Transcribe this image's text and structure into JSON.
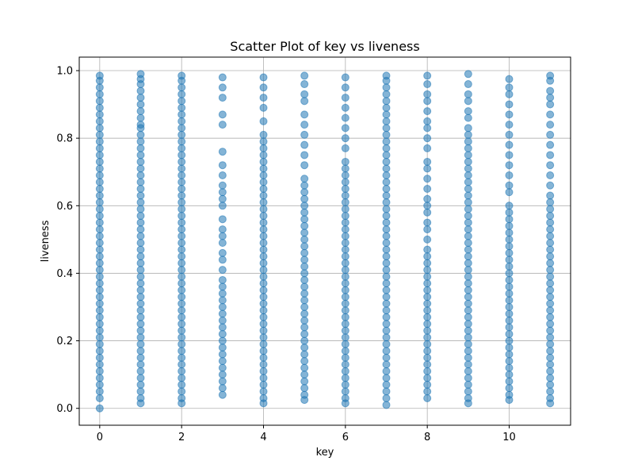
{
  "chart_data": {
    "type": "scatter",
    "title": "Scatter Plot of key vs liveness",
    "xlabel": "key",
    "ylabel": "liveness",
    "xlim": [
      -0.5,
      11.5
    ],
    "ylim": [
      -0.05,
      1.04
    ],
    "xticks": [
      0,
      2,
      4,
      6,
      8,
      10
    ],
    "xtick_labels": [
      "0",
      "2",
      "4",
      "6",
      "8",
      "10"
    ],
    "yticks": [
      0.0,
      0.2,
      0.4,
      0.6,
      0.8,
      1.0
    ],
    "ytick_labels": [
      "0.0",
      "0.2",
      "0.4",
      "0.6",
      "0.8",
      "1.0"
    ],
    "grid": true,
    "marker_color": "#1f77b4",
    "marker_alpha": 0.55,
    "series": [
      {
        "points_by_key": [
          {
            "x": 0,
            "y": [
              0.0,
              0.03,
              0.05,
              0.07,
              0.09,
              0.11,
              0.13,
              0.15,
              0.17,
              0.19,
              0.21,
              0.23,
              0.25,
              0.27,
              0.29,
              0.31,
              0.33,
              0.35,
              0.37,
              0.39,
              0.41,
              0.43,
              0.45,
              0.47,
              0.49,
              0.51,
              0.53,
              0.55,
              0.57,
              0.59,
              0.61,
              0.63,
              0.65,
              0.67,
              0.69,
              0.71,
              0.73,
              0.75,
              0.77,
              0.79,
              0.81,
              0.83,
              0.85,
              0.87,
              0.89,
              0.91,
              0.93,
              0.95,
              0.97,
              0.985
            ]
          },
          {
            "x": 1,
            "y": [
              0.015,
              0.03,
              0.05,
              0.07,
              0.09,
              0.11,
              0.13,
              0.15,
              0.17,
              0.19,
              0.21,
              0.23,
              0.25,
              0.27,
              0.29,
              0.31,
              0.33,
              0.35,
              0.37,
              0.39,
              0.41,
              0.43,
              0.45,
              0.47,
              0.49,
              0.51,
              0.53,
              0.55,
              0.57,
              0.59,
              0.61,
              0.63,
              0.65,
              0.67,
              0.69,
              0.71,
              0.73,
              0.75,
              0.77,
              0.79,
              0.81,
              0.83,
              0.84,
              0.86,
              0.88,
              0.9,
              0.92,
              0.94,
              0.96,
              0.975,
              0.99
            ]
          },
          {
            "x": 2,
            "y": [
              0.015,
              0.03,
              0.05,
              0.07,
              0.09,
              0.11,
              0.13,
              0.15,
              0.17,
              0.19,
              0.21,
              0.23,
              0.25,
              0.27,
              0.29,
              0.31,
              0.33,
              0.35,
              0.37,
              0.39,
              0.41,
              0.43,
              0.45,
              0.47,
              0.49,
              0.51,
              0.53,
              0.55,
              0.57,
              0.59,
              0.61,
              0.63,
              0.65,
              0.67,
              0.69,
              0.71,
              0.73,
              0.75,
              0.77,
              0.79,
              0.81,
              0.83,
              0.85,
              0.87,
              0.89,
              0.91,
              0.93,
              0.95,
              0.97,
              0.985
            ]
          },
          {
            "x": 3,
            "y": [
              0.04,
              0.06,
              0.08,
              0.1,
              0.12,
              0.14,
              0.16,
              0.18,
              0.2,
              0.22,
              0.24,
              0.26,
              0.28,
              0.3,
              0.32,
              0.34,
              0.36,
              0.38,
              0.41,
              0.44,
              0.46,
              0.49,
              0.51,
              0.53,
              0.56,
              0.6,
              0.62,
              0.64,
              0.66,
              0.69,
              0.72,
              0.76,
              0.84,
              0.87,
              0.92,
              0.95,
              0.98
            ]
          },
          {
            "x": 4,
            "y": [
              0.015,
              0.03,
              0.05,
              0.07,
              0.09,
              0.11,
              0.13,
              0.15,
              0.17,
              0.19,
              0.21,
              0.23,
              0.25,
              0.27,
              0.29,
              0.31,
              0.33,
              0.35,
              0.37,
              0.39,
              0.41,
              0.43,
              0.45,
              0.47,
              0.49,
              0.51,
              0.53,
              0.55,
              0.57,
              0.59,
              0.61,
              0.63,
              0.65,
              0.67,
              0.69,
              0.71,
              0.73,
              0.75,
              0.77,
              0.79,
              0.81,
              0.85,
              0.89,
              0.92,
              0.95,
              0.98
            ]
          },
          {
            "x": 5,
            "y": [
              0.025,
              0.04,
              0.06,
              0.08,
              0.1,
              0.12,
              0.14,
              0.16,
              0.18,
              0.2,
              0.22,
              0.24,
              0.26,
              0.28,
              0.3,
              0.32,
              0.34,
              0.36,
              0.38,
              0.4,
              0.42,
              0.44,
              0.46,
              0.48,
              0.5,
              0.52,
              0.54,
              0.56,
              0.58,
              0.6,
              0.62,
              0.64,
              0.66,
              0.68,
              0.72,
              0.75,
              0.78,
              0.81,
              0.84,
              0.87,
              0.91,
              0.93,
              0.96,
              0.985
            ]
          },
          {
            "x": 6,
            "y": [
              0.015,
              0.03,
              0.05,
              0.07,
              0.09,
              0.11,
              0.13,
              0.15,
              0.17,
              0.19,
              0.21,
              0.23,
              0.25,
              0.27,
              0.29,
              0.31,
              0.33,
              0.35,
              0.37,
              0.39,
              0.41,
              0.43,
              0.45,
              0.47,
              0.49,
              0.51,
              0.53,
              0.55,
              0.57,
              0.59,
              0.61,
              0.63,
              0.65,
              0.67,
              0.69,
              0.71,
              0.73,
              0.77,
              0.8,
              0.83,
              0.86,
              0.89,
              0.92,
              0.95,
              0.98
            ]
          },
          {
            "x": 7,
            "y": [
              0.01,
              0.03,
              0.05,
              0.07,
              0.09,
              0.11,
              0.13,
              0.15,
              0.17,
              0.19,
              0.21,
              0.23,
              0.25,
              0.27,
              0.29,
              0.31,
              0.33,
              0.35,
              0.37,
              0.39,
              0.41,
              0.43,
              0.45,
              0.47,
              0.49,
              0.51,
              0.53,
              0.55,
              0.57,
              0.59,
              0.61,
              0.63,
              0.65,
              0.67,
              0.69,
              0.71,
              0.73,
              0.75,
              0.77,
              0.79,
              0.81,
              0.83,
              0.85,
              0.87,
              0.89,
              0.91,
              0.93,
              0.95,
              0.97,
              0.985
            ]
          },
          {
            "x": 8,
            "y": [
              0.03,
              0.05,
              0.07,
              0.09,
              0.11,
              0.13,
              0.15,
              0.17,
              0.19,
              0.21,
              0.23,
              0.25,
              0.27,
              0.29,
              0.31,
              0.33,
              0.35,
              0.37,
              0.39,
              0.41,
              0.43,
              0.45,
              0.47,
              0.5,
              0.53,
              0.55,
              0.58,
              0.6,
              0.62,
              0.65,
              0.68,
              0.71,
              0.73,
              0.77,
              0.8,
              0.83,
              0.85,
              0.88,
              0.91,
              0.93,
              0.96,
              0.985
            ]
          },
          {
            "x": 9,
            "y": [
              0.015,
              0.03,
              0.05,
              0.07,
              0.09,
              0.11,
              0.13,
              0.15,
              0.17,
              0.19,
              0.21,
              0.23,
              0.25,
              0.27,
              0.29,
              0.31,
              0.33,
              0.35,
              0.37,
              0.39,
              0.41,
              0.43,
              0.45,
              0.47,
              0.49,
              0.51,
              0.53,
              0.55,
              0.57,
              0.59,
              0.61,
              0.63,
              0.65,
              0.67,
              0.69,
              0.71,
              0.73,
              0.75,
              0.77,
              0.79,
              0.81,
              0.83,
              0.86,
              0.88,
              0.91,
              0.93,
              0.96,
              0.99
            ]
          },
          {
            "x": 10,
            "y": [
              0.025,
              0.04,
              0.06,
              0.08,
              0.1,
              0.12,
              0.14,
              0.16,
              0.18,
              0.2,
              0.22,
              0.24,
              0.26,
              0.28,
              0.3,
              0.32,
              0.34,
              0.36,
              0.38,
              0.4,
              0.42,
              0.44,
              0.46,
              0.48,
              0.5,
              0.52,
              0.54,
              0.56,
              0.58,
              0.6,
              0.64,
              0.66,
              0.69,
              0.72,
              0.75,
              0.78,
              0.81,
              0.84,
              0.87,
              0.9,
              0.93,
              0.95,
              0.975
            ]
          },
          {
            "x": 11,
            "y": [
              0.015,
              0.03,
              0.05,
              0.07,
              0.09,
              0.11,
              0.13,
              0.15,
              0.17,
              0.19,
              0.21,
              0.23,
              0.25,
              0.27,
              0.29,
              0.31,
              0.33,
              0.35,
              0.37,
              0.39,
              0.41,
              0.43,
              0.45,
              0.47,
              0.49,
              0.51,
              0.53,
              0.55,
              0.57,
              0.59,
              0.61,
              0.63,
              0.66,
              0.69,
              0.72,
              0.75,
              0.78,
              0.81,
              0.84,
              0.87,
              0.9,
              0.92,
              0.94,
              0.97,
              0.985
            ]
          }
        ]
      }
    ]
  }
}
